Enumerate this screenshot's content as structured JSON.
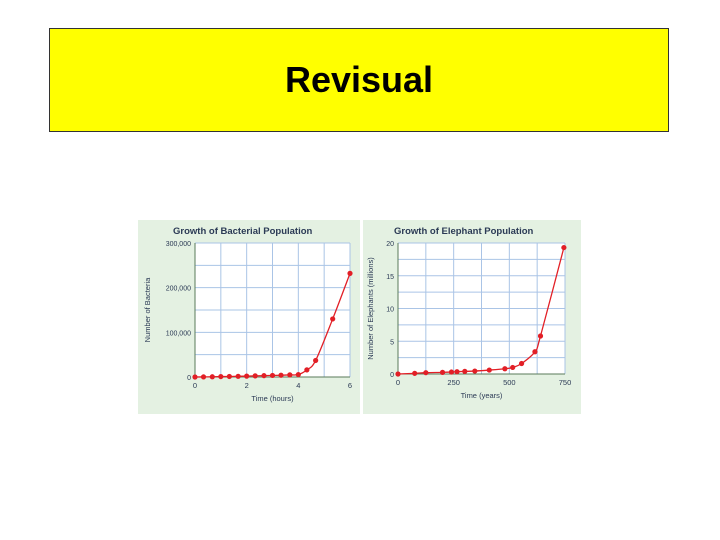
{
  "slide": {
    "title": "Revisual"
  },
  "colors": {
    "title_bg": "#ffff00",
    "panel_bg": "#e4f1e2",
    "curve": "#e21f26",
    "grid": "#aac4e6"
  },
  "chart_data": [
    {
      "type": "line",
      "title": "Growth of Bacterial Population",
      "xlabel": "Time (hours)",
      "ylabel": "Number of Bacteria",
      "xlim": [
        0,
        6
      ],
      "ylim": [
        0,
        300000
      ],
      "xticks": [
        0,
        2,
        4,
        6
      ],
      "yticks": [
        0,
        100000,
        200000,
        300000
      ],
      "ytick_labels": [
        "0",
        "100,000",
        "200,000",
        "300,000"
      ],
      "grid": true,
      "x": [
        0,
        0.33,
        0.67,
        1,
        1.33,
        1.67,
        2,
        2.33,
        2.67,
        3,
        3.33,
        3.67,
        4,
        4.33,
        4.67,
        5.33,
        6
      ],
      "y": [
        0,
        200,
        500,
        900,
        1200,
        1500,
        2000,
        2500,
        3000,
        3500,
        4000,
        4700,
        5500,
        16000,
        37000,
        130000,
        232000
      ]
    },
    {
      "type": "line",
      "title": "Growth of Elephant Population",
      "xlabel": "Time (years)",
      "ylabel": "Number of Elephants (millions)",
      "xlim": [
        0,
        750
      ],
      "ylim": [
        0,
        20
      ],
      "xticks": [
        0,
        250,
        500,
        750
      ],
      "yticks": [
        0,
        5,
        10,
        15,
        20
      ],
      "ytick_labels": [
        "0",
        "5",
        "10",
        "15",
        "20"
      ],
      "grid": true,
      "x": [
        0,
        75,
        125,
        200,
        240,
        265,
        300,
        345,
        410,
        480,
        515,
        555,
        615,
        640,
        745
      ],
      "y": [
        0,
        0.1,
        0.2,
        0.25,
        0.3,
        0.35,
        0.4,
        0.45,
        0.6,
        0.8,
        1.0,
        1.6,
        3.4,
        5.8,
        19.3
      ]
    }
  ]
}
